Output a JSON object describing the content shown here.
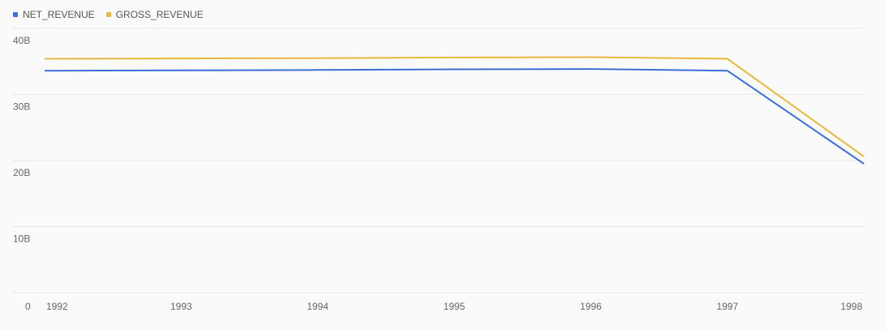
{
  "legend": {
    "items": [
      {
        "label": "NET_REVENUE",
        "color": "#3b6fd8"
      },
      {
        "label": "GROSS_REVENUE",
        "color": "#e9b83c"
      }
    ]
  },
  "chart_data": {
    "type": "line",
    "x": [
      "1992",
      "1993",
      "1994",
      "1995",
      "1996",
      "1997",
      "1998"
    ],
    "series": [
      {
        "name": "NET_REVENUE",
        "color": "#3b6fd8",
        "values": [
          33.6,
          33.65,
          33.7,
          33.8,
          33.85,
          33.6,
          19.5
        ]
      },
      {
        "name": "GROSS_REVENUE",
        "color": "#e9b83c",
        "values": [
          35.4,
          35.45,
          35.5,
          35.6,
          35.65,
          35.4,
          20.6
        ]
      }
    ],
    "yticks": [
      {
        "value": 0,
        "label": "0"
      },
      {
        "value": 10,
        "label": "10B"
      },
      {
        "value": 20,
        "label": "20B"
      },
      {
        "value": 30,
        "label": "30B"
      },
      {
        "value": 40,
        "label": "40B"
      }
    ],
    "ylim": [
      0,
      40
    ],
    "grid": true,
    "legend_position": "top-left"
  }
}
